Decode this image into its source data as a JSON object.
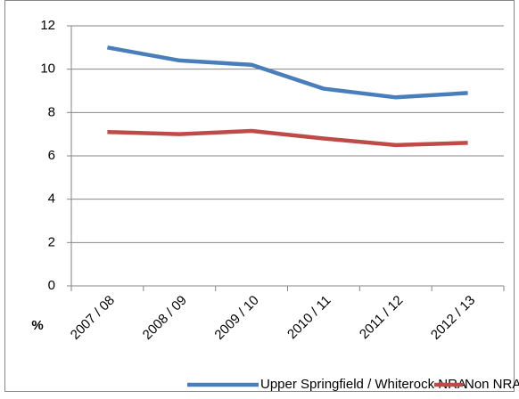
{
  "chart_data": {
    "type": "line",
    "categories": [
      "2007 / 08",
      "2008 / 09",
      "2009 / 10",
      "2010 / 11",
      "2011 / 12",
      "2012 / 13"
    ],
    "series": [
      {
        "name": "Upper Springfield / Whiterock NRA",
        "color": "#4a7ebb",
        "values": [
          11.0,
          10.4,
          10.2,
          9.1,
          8.7,
          8.9
        ]
      },
      {
        "name": "Non NRA",
        "color": "#be4b48",
        "values": [
          7.1,
          7.0,
          7.15,
          6.8,
          6.5,
          6.6
        ]
      }
    ],
    "y_label": "%",
    "ylim": [
      0,
      12
    ],
    "yticks": [
      0,
      2,
      4,
      6,
      8,
      10,
      12
    ],
    "grid": true,
    "legend": "bottom"
  }
}
